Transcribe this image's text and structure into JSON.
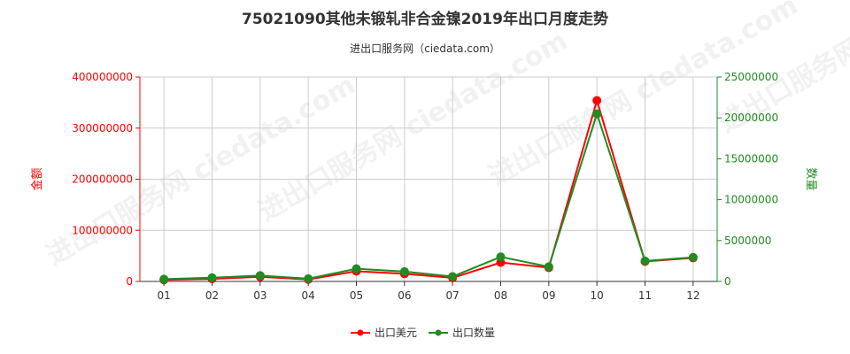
{
  "colors": {
    "value_series": "#ff0000",
    "quantity_series": "#228b22",
    "left_axis": "#ff0000",
    "right_axis": "#228b22",
    "grid": "#cccccc",
    "text": "#333333"
  },
  "chart_data": {
    "type": "line",
    "title": "75021090其他未锻轧非合金镍2019年出口月度走势",
    "subtitle": "进出口服务网（ciedata.com）",
    "watermark": "进出口服务网 ciedata.com",
    "categories": [
      "01",
      "02",
      "03",
      "04",
      "05",
      "06",
      "07",
      "08",
      "09",
      "10",
      "11",
      "12"
    ],
    "y_left": {
      "label": "金额",
      "min": 0,
      "max": 400000000,
      "ticks": [
        0,
        100000000,
        200000000,
        300000000,
        400000000
      ],
      "tick_labels": [
        "0",
        "100000000",
        "200000000",
        "300000000",
        "400000000"
      ]
    },
    "y_right": {
      "label": "数量",
      "min": 0,
      "max": 25000000,
      "ticks": [
        0,
        5000000,
        10000000,
        15000000,
        20000000,
        25000000
      ],
      "tick_labels": [
        "0",
        "5000000",
        "10000000",
        "15000000",
        "20000000",
        "25000000"
      ]
    },
    "series": [
      {
        "name": "出口美元",
        "axis": "left",
        "values": [
          3000000,
          5000000,
          9000000,
          4000000,
          20000000,
          15000000,
          7000000,
          37000000,
          27000000,
          354000000,
          39000000,
          46000000
        ]
      },
      {
        "name": "出口数量",
        "axis": "right",
        "values": [
          280000,
          460000,
          720000,
          340000,
          1550000,
          1200000,
          600000,
          3000000,
          1800000,
          20500000,
          2500000,
          2950000
        ]
      }
    ],
    "grid": true,
    "legend_position": "bottom-center"
  }
}
